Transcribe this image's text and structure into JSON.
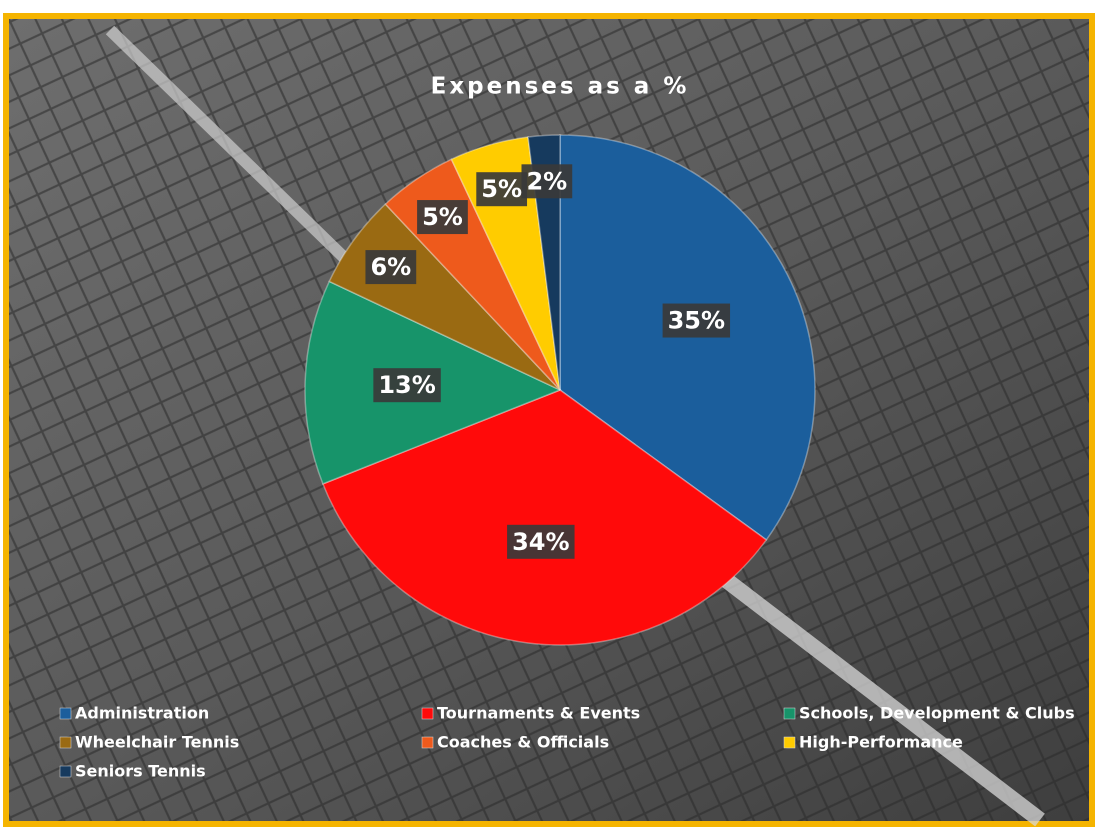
{
  "chart_data": {
    "type": "pie",
    "title": "Expenses as a %",
    "categories": [
      "Administration",
      "Tournaments & Events",
      "Schools, Development & Clubs",
      "Wheelchair Tennis",
      "Coaches & Officials",
      "High-Performance",
      "Seniors Tennis"
    ],
    "values": [
      35,
      34,
      13,
      6,
      5,
      5,
      2
    ],
    "value_labels": [
      "35%",
      "34%",
      "13%",
      "6%",
      "5%",
      "5%",
      "2%"
    ],
    "colors": [
      "#1b5e9c",
      "#ff0a0a",
      "#17946a",
      "#9a6a12",
      "#ee5a1c",
      "#ffcc00",
      "#163a5e"
    ]
  }
}
